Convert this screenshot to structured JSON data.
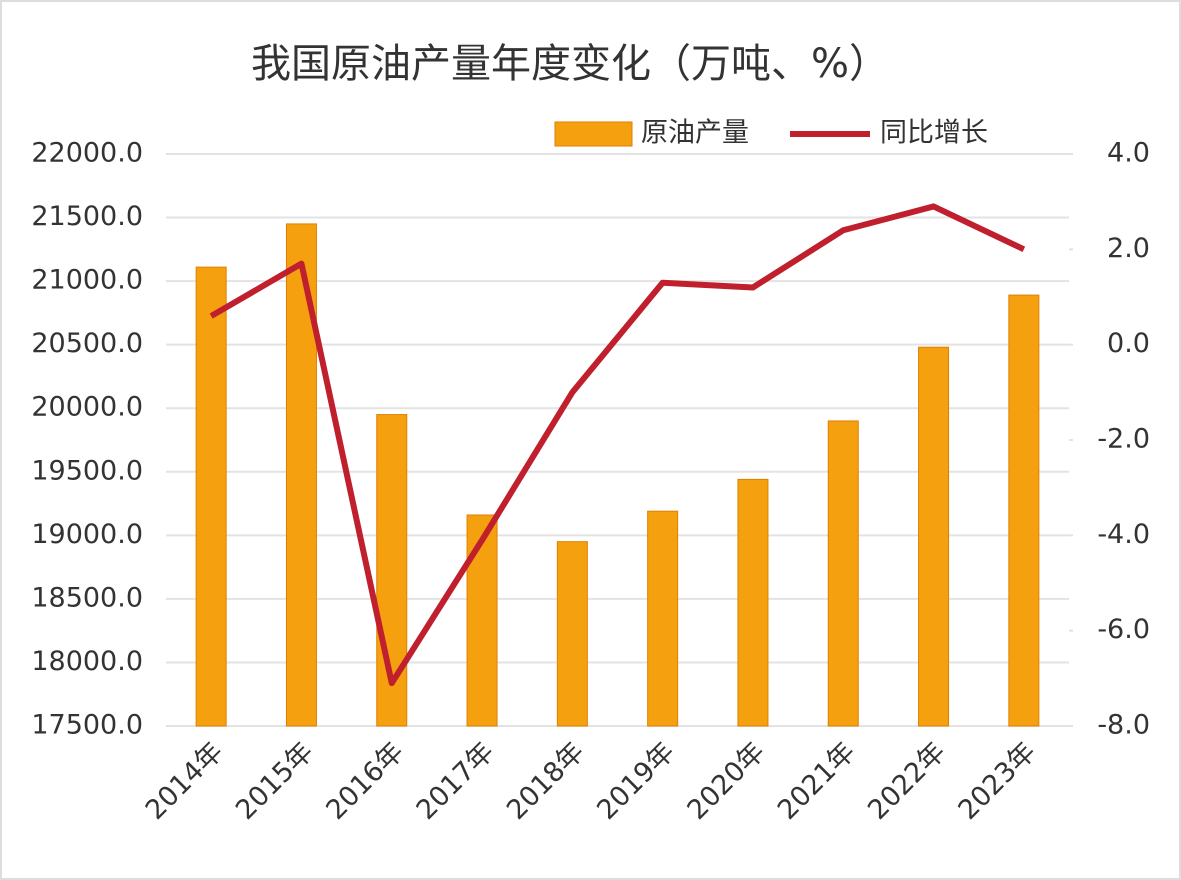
{
  "chart_data": {
    "type": "combo",
    "title": "我国原油产量年度变化（万吨、%）",
    "categories": [
      "2014年",
      "2015年",
      "2016年",
      "2017年",
      "2018年",
      "2019年",
      "2020年",
      "2021年",
      "2022年",
      "2023年"
    ],
    "series": [
      {
        "name": "原油产量",
        "type": "bar",
        "color": "#f5a10f",
        "values": [
          21110,
          21450,
          19950,
          19160,
          18950,
          19190,
          19440,
          19900,
          20480,
          20890
        ]
      },
      {
        "name": "同比增长",
        "type": "line",
        "axis": "y2",
        "color": "#c0202e",
        "values": [
          0.6,
          1.7,
          -7.1,
          -4.1,
          -1.0,
          1.3,
          1.2,
          2.4,
          2.9,
          2.0
        ]
      }
    ],
    "ylim": [
      17500,
      22000
    ],
    "yticks": [
      {
        "value": 17500,
        "label": "17500.0"
      },
      {
        "value": 18000,
        "label": "18000.0"
      },
      {
        "value": 18500,
        "label": "18500.0"
      },
      {
        "value": 19000,
        "label": "19000.0"
      },
      {
        "value": 19500,
        "label": "19500.0"
      },
      {
        "value": 20000,
        "label": "20000.0"
      },
      {
        "value": 20500,
        "label": "20500.0"
      },
      {
        "value": 21000,
        "label": "21000.0"
      },
      {
        "value": 21500,
        "label": "21500.0"
      },
      {
        "value": 22000,
        "label": "22000.0"
      }
    ],
    "y2lim": [
      -8,
      4
    ],
    "y2ticks": [
      {
        "value": -8,
        "label": "-8.0"
      },
      {
        "value": -6,
        "label": "-6.0"
      },
      {
        "value": -4,
        "label": "-4.0"
      },
      {
        "value": -2,
        "label": "-2.0"
      },
      {
        "value": 0,
        "label": "0.0"
      },
      {
        "value": 2,
        "label": "2.0"
      },
      {
        "value": 4,
        "label": "4.0"
      }
    ],
    "grid": true
  }
}
